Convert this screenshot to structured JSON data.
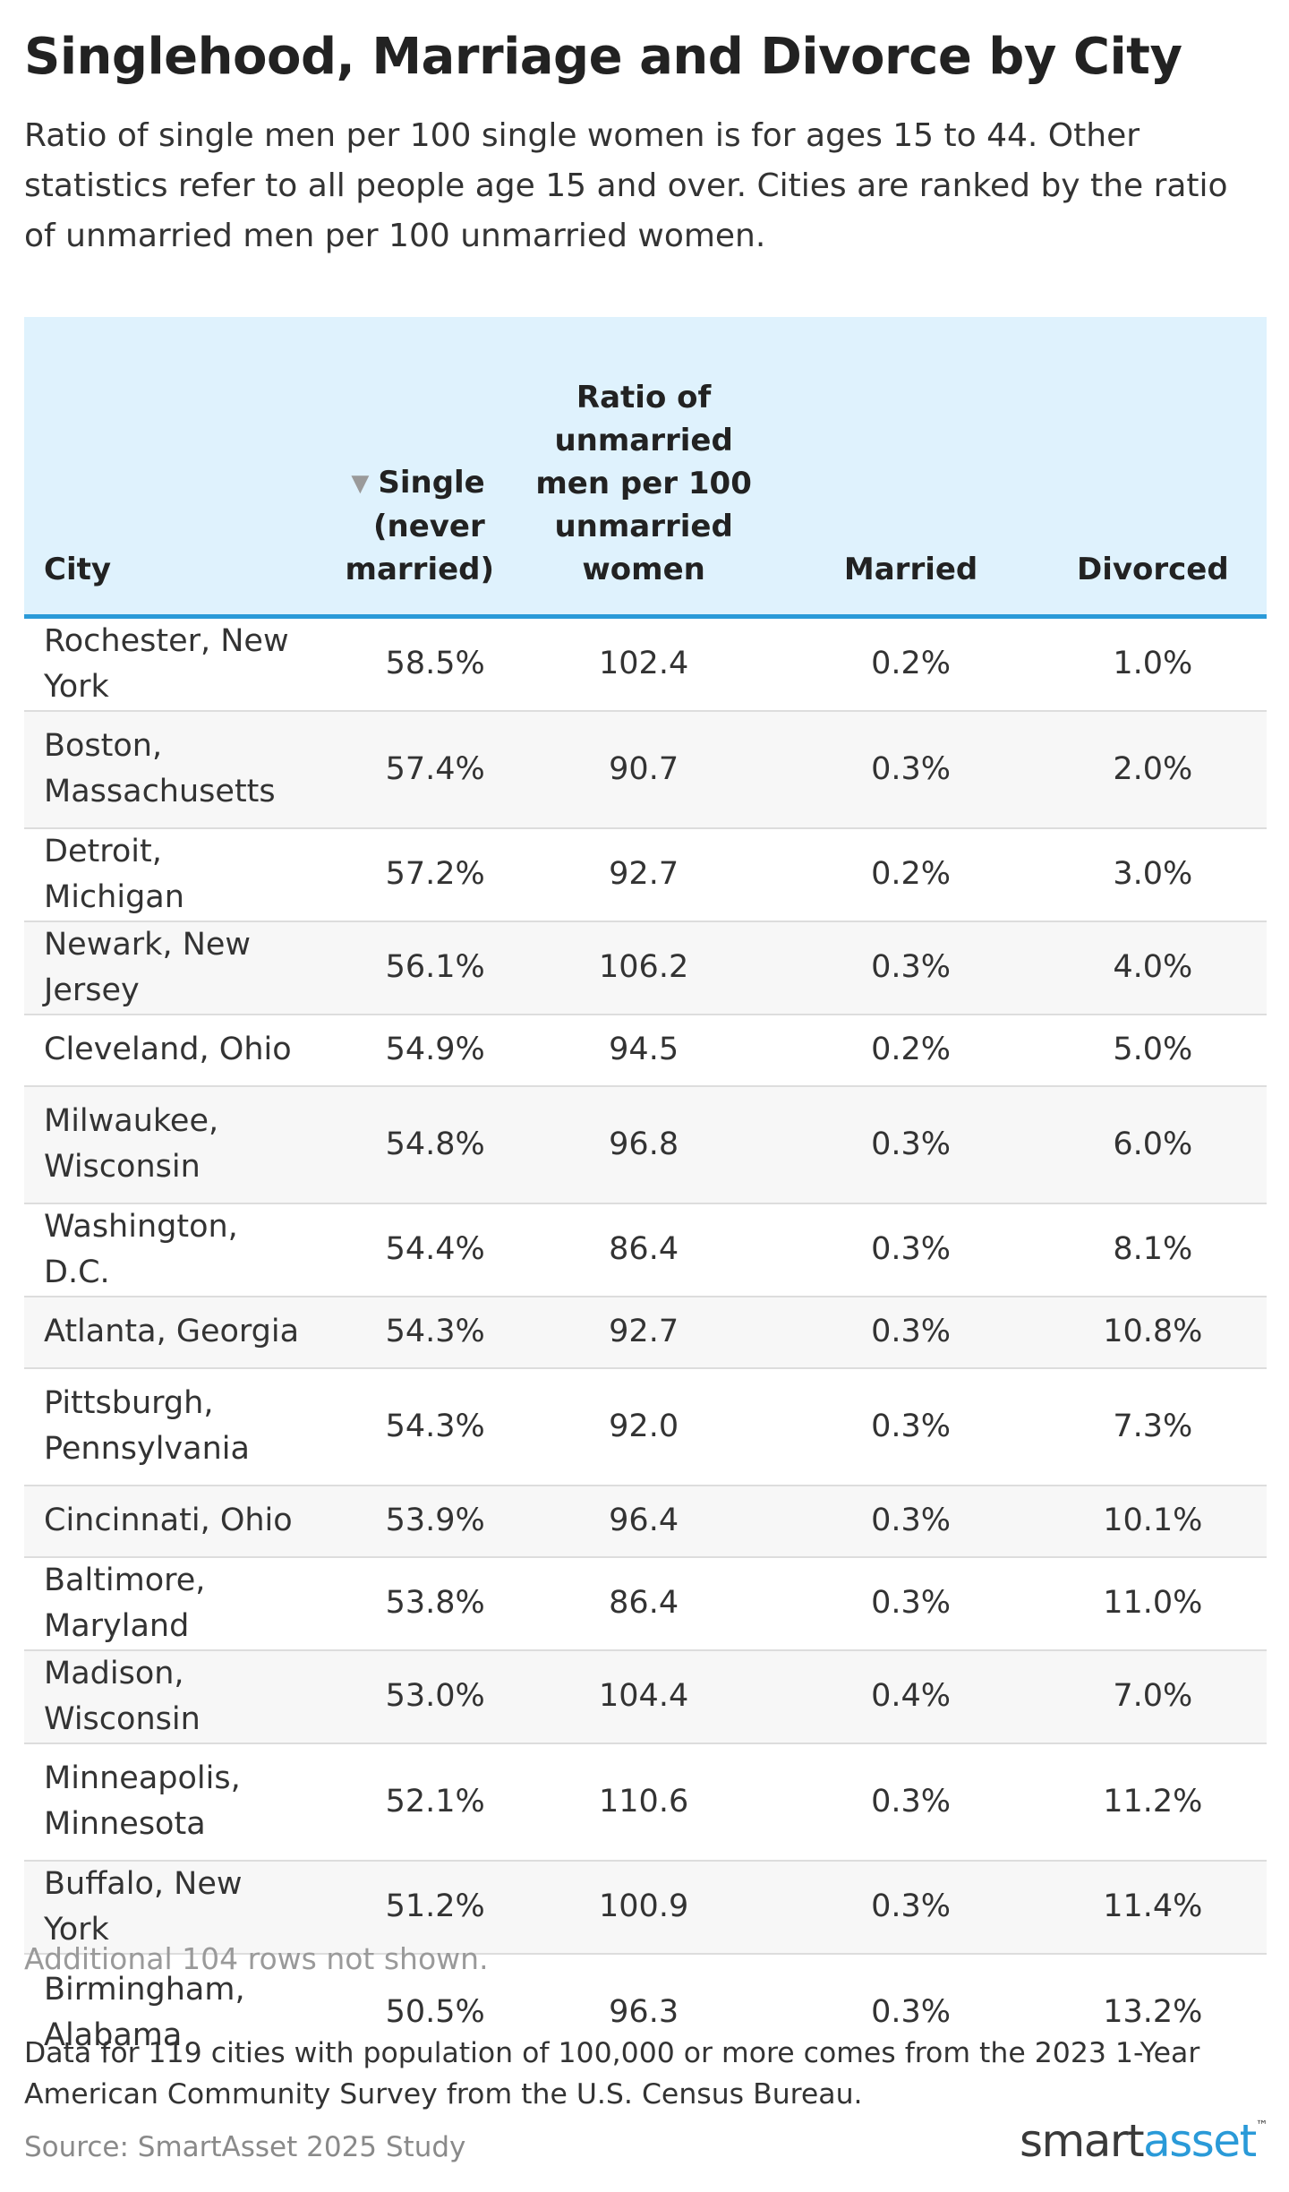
{
  "title": "Singlehood, Marriage and Divorce by City",
  "subtitle": "Ratio of single men per 100 single women is for ages 15 to 44. Other statistics refer to all people age 15 and over. Cities are ranked by the ratio of unmarried men per 100 unmarried women.",
  "sort_icon": "▼",
  "headers": {
    "city": "City",
    "single": "Single (never married)",
    "ratio": "Ratio of unmarried men per 100 unmarried women",
    "married": "Married",
    "divorced": "Divorced"
  },
  "more_rows": "Additional 104 rows not shown.",
  "note": "Data for 119 cities with population of 100,000 or more comes from the 2023 1-Year American Community Survey from the U.S. Census Bureau.",
  "source": "Source: SmartAsset 2025 Study",
  "logo": {
    "part1": "smart",
    "part2": "asset",
    "tm": "™"
  },
  "colors": {
    "header_bg": "#dff2fd",
    "header_rule": "#2a9ad8",
    "zebra": "#f7f7f7",
    "logo_accent": "#2a9ad8"
  },
  "chart_data": {
    "type": "table",
    "title": "Singlehood, Marriage and Divorce by City",
    "columns": [
      "City",
      "Single (never married)",
      "Ratio of unmarried men per 100 unmarried women",
      "Married",
      "Divorced"
    ],
    "sorted_by": "Single (never married)",
    "sort_direction": "descending",
    "rows": [
      {
        "city": "Rochester, New York",
        "single": "58.5%",
        "ratio": "102.4",
        "married": "0.2%",
        "divorced": "1.0%"
      },
      {
        "city": "Boston, Massachusetts",
        "single": "57.4%",
        "ratio": "90.7",
        "married": "0.3%",
        "divorced": "2.0%"
      },
      {
        "city": "Detroit, Michigan",
        "single": "57.2%",
        "ratio": "92.7",
        "married": "0.2%",
        "divorced": "3.0%"
      },
      {
        "city": "Newark, New Jersey",
        "single": "56.1%",
        "ratio": "106.2",
        "married": "0.3%",
        "divorced": "4.0%"
      },
      {
        "city": "Cleveland, Ohio",
        "single": "54.9%",
        "ratio": "94.5",
        "married": "0.2%",
        "divorced": "5.0%"
      },
      {
        "city": "Milwaukee, Wisconsin",
        "single": "54.8%",
        "ratio": "96.8",
        "married": "0.3%",
        "divorced": "6.0%"
      },
      {
        "city": "Washington, D.C.",
        "single": "54.4%",
        "ratio": "86.4",
        "married": "0.3%",
        "divorced": "8.1%"
      },
      {
        "city": "Atlanta, Georgia",
        "single": "54.3%",
        "ratio": "92.7",
        "married": "0.3%",
        "divorced": "10.8%"
      },
      {
        "city": "Pittsburgh, Pennsylvania",
        "single": "54.3%",
        "ratio": "92.0",
        "married": "0.3%",
        "divorced": "7.3%"
      },
      {
        "city": "Cincinnati, Ohio",
        "single": "53.9%",
        "ratio": "96.4",
        "married": "0.3%",
        "divorced": "10.1%"
      },
      {
        "city": "Baltimore, Maryland",
        "single": "53.8%",
        "ratio": "86.4",
        "married": "0.3%",
        "divorced": "11.0%"
      },
      {
        "city": "Madison, Wisconsin",
        "single": "53.0%",
        "ratio": "104.4",
        "married": "0.4%",
        "divorced": "7.0%"
      },
      {
        "city": "Minneapolis, Minnesota",
        "single": "52.1%",
        "ratio": "110.6",
        "married": "0.3%",
        "divorced": "11.2%"
      },
      {
        "city": "Buffalo, New York",
        "single": "51.2%",
        "ratio": "100.9",
        "married": "0.3%",
        "divorced": "11.4%"
      },
      {
        "city": "Birmingham, Alabama",
        "single": "50.5%",
        "ratio": "96.3",
        "married": "0.3%",
        "divorced": "13.2%"
      }
    ]
  }
}
